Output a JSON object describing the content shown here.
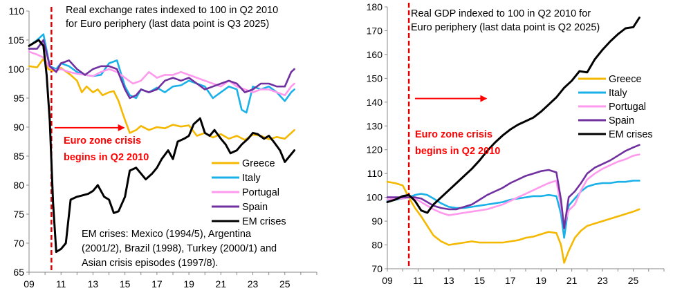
{
  "colors": {
    "Greece": "#f5b800",
    "Italy": "#1ab0e8",
    "Portugal": "#ff99ee",
    "Spain": "#7030a0",
    "EM crises": "#000000",
    "crisis_line": "#e00000",
    "crisis_text": "#ff0000"
  },
  "chart_data": [
    {
      "type": "line",
      "title_lines": [
        "Real exchange rates indexed to 100 in Q2 2010",
        "for Euro periphery (last data point is Q3 2025)"
      ],
      "xlabel": "",
      "ylabel": "",
      "xlim": [
        2009,
        2027
      ],
      "ylim": [
        65,
        110
      ],
      "yticks": [
        65,
        70,
        75,
        80,
        85,
        90,
        95,
        100,
        105,
        110
      ],
      "xticks": [
        2009,
        2011,
        2013,
        2015,
        2017,
        2019,
        2021,
        2023,
        2025
      ],
      "xtick_labels": [
        "09",
        "11",
        "13",
        "15",
        "17",
        "19",
        "21",
        "23",
        "25"
      ],
      "crisis_x": 2010.4,
      "annotation_lines": [
        "Euro zone crisis",
        "begins in Q2 2010"
      ],
      "note_lines": [
        "EM crises: Mexico (1994/5), Argentina",
        "(2001/2), Brazil (1998), Turkey (2000/1) and",
        "Asian crisis episodes (1997/8)."
      ],
      "legend_position": "center-right",
      "series": [
        {
          "name": "Greece",
          "x": [
            2009.0,
            2009.5,
            2009.9,
            2010.2,
            2010.5,
            2010.8,
            2011.0,
            2011.3,
            2011.6,
            2012.0,
            2012.3,
            2012.6,
            2013.0,
            2013.3,
            2013.6,
            2014.0,
            2014.3,
            2014.6,
            2014.9,
            2015.1,
            2015.3,
            2015.7,
            2016.0,
            2016.5,
            2017.0,
            2017.5,
            2018.0,
            2018.5,
            2019.0,
            2019.5,
            2020.0,
            2020.5,
            2021.0,
            2021.5,
            2022.0,
            2022.5,
            2023.0,
            2023.5,
            2024.0,
            2024.5,
            2025.0,
            2025.4,
            2025.6
          ],
          "y": [
            100.5,
            100.3,
            101.8,
            100.0,
            99.7,
            99.8,
            100.2,
            99.6,
            99.0,
            98.0,
            96.0,
            97.0,
            96.0,
            96.5,
            95.5,
            96.0,
            96.2,
            94.5,
            92.0,
            90.5,
            89.0,
            89.5,
            90.2,
            89.5,
            90.0,
            89.8,
            90.4,
            90.1,
            90.3,
            88.5,
            89.0,
            88.2,
            88.8,
            88.0,
            88.5,
            87.8,
            88.7,
            88.5,
            87.9,
            88.3,
            88.0,
            89.0,
            89.5
          ]
        },
        {
          "name": "Italy",
          "x": [
            2009.0,
            2009.5,
            2009.9,
            2010.3,
            2010.7,
            2011.0,
            2011.5,
            2012.0,
            2012.5,
            2013.0,
            2013.5,
            2014.0,
            2014.5,
            2015.0,
            2015.3,
            2015.7,
            2016.0,
            2016.5,
            2017.0,
            2017.5,
            2018.0,
            2018.5,
            2019.0,
            2019.5,
            2020.0,
            2020.5,
            2021.0,
            2021.5,
            2022.0,
            2022.3,
            2022.6,
            2023.0,
            2023.5,
            2024.0,
            2024.5,
            2025.0,
            2025.4,
            2025.6
          ],
          "y": [
            104.0,
            105.0,
            106.0,
            100.5,
            100.0,
            101.0,
            100.5,
            99.5,
            99.0,
            98.8,
            99.0,
            101.0,
            101.5,
            97.0,
            95.5,
            95.0,
            96.5,
            96.0,
            96.8,
            96.0,
            97.0,
            97.2,
            98.0,
            97.5,
            97.0,
            95.0,
            96.0,
            97.0,
            96.5,
            93.0,
            92.5,
            97.0,
            96.5,
            97.0,
            96.0,
            94.5,
            96.0,
            96.5
          ]
        },
        {
          "name": "Portugal",
          "x": [
            2009.0,
            2009.5,
            2009.9,
            2010.3,
            2010.7,
            2011.0,
            2011.5,
            2012.0,
            2012.5,
            2013.0,
            2013.5,
            2014.0,
            2014.5,
            2015.0,
            2015.5,
            2016.0,
            2016.5,
            2017.0,
            2017.5,
            2018.0,
            2018.5,
            2019.0,
            2019.5,
            2020.0,
            2020.5,
            2021.0,
            2021.5,
            2022.0,
            2022.5,
            2023.0,
            2023.5,
            2024.0,
            2024.5,
            2025.0,
            2025.4,
            2025.6
          ],
          "y": [
            103.0,
            102.5,
            102.0,
            100.2,
            99.8,
            100.0,
            99.5,
            99.2,
            99.0,
            98.8,
            99.5,
            100.0,
            99.5,
            98.5,
            97.5,
            98.0,
            99.5,
            98.5,
            99.0,
            99.0,
            99.5,
            99.0,
            98.5,
            98.0,
            97.5,
            97.0,
            98.0,
            97.0,
            96.5,
            96.0,
            96.5,
            96.5,
            96.0,
            95.5,
            97.0,
            97.5
          ]
        },
        {
          "name": "Spain",
          "x": [
            2009.0,
            2009.5,
            2009.9,
            2010.3,
            2010.7,
            2011.0,
            2011.5,
            2012.0,
            2012.5,
            2013.0,
            2013.5,
            2014.0,
            2014.5,
            2015.0,
            2015.3,
            2015.7,
            2016.0,
            2016.5,
            2017.0,
            2017.5,
            2018.0,
            2018.5,
            2019.0,
            2019.5,
            2020.0,
            2020.5,
            2021.0,
            2021.5,
            2022.0,
            2022.5,
            2023.0,
            2023.5,
            2024.0,
            2024.5,
            2025.0,
            2025.4,
            2025.6
          ],
          "y": [
            103.5,
            103.5,
            105.0,
            100.5,
            99.5,
            101.0,
            101.5,
            100.0,
            99.0,
            100.0,
            100.5,
            100.5,
            100.0,
            96.5,
            95.0,
            95.5,
            96.5,
            96.0,
            96.5,
            98.0,
            98.5,
            98.0,
            98.5,
            97.5,
            96.5,
            97.0,
            97.5,
            98.0,
            97.5,
            96.0,
            96.5,
            97.5,
            97.5,
            97.0,
            97.0,
            99.5,
            100.0
          ]
        },
        {
          "name": "EM crises",
          "x": [
            2009.0,
            2009.3,
            2009.6,
            2009.9,
            2010.1,
            2010.3,
            2010.5,
            2010.7,
            2011.0,
            2011.3,
            2011.6,
            2012.0,
            2012.3,
            2012.7,
            2013.0,
            2013.3,
            2013.7,
            2014.0,
            2014.3,
            2014.6,
            2015.0,
            2015.3,
            2015.7,
            2016.0,
            2016.3,
            2016.7,
            2017.0,
            2017.3,
            2017.7,
            2018.0,
            2018.3,
            2018.7,
            2019.0,
            2019.3,
            2019.7,
            2020.0,
            2020.3,
            2020.6,
            2021.0,
            2021.3,
            2021.6,
            2022.0,
            2022.3,
            2022.7,
            2023.0,
            2023.3,
            2023.7,
            2024.0,
            2024.3,
            2024.7,
            2025.0,
            2025.3,
            2025.6
          ],
          "y": [
            104.0,
            104.5,
            105.0,
            104.0,
            99.0,
            91.0,
            77.0,
            68.5,
            69.0,
            70.0,
            77.5,
            78.0,
            78.2,
            78.5,
            79.0,
            80.0,
            78.0,
            77.5,
            75.2,
            75.5,
            78.0,
            82.5,
            83.0,
            82.0,
            81.0,
            82.0,
            83.0,
            84.5,
            86.0,
            84.5,
            87.5,
            88.0,
            88.5,
            90.5,
            91.5,
            89.0,
            88.5,
            89.5,
            88.0,
            87.0,
            85.5,
            86.0,
            87.0,
            88.0,
            89.0,
            88.8,
            88.0,
            88.5,
            87.5,
            86.0,
            84.0,
            85.0,
            86.0
          ]
        }
      ]
    },
    {
      "type": "line",
      "title_lines": [
        "Real GDP indexed to 100 in Q2 2010 for",
        "Euro periphery (last data point is Q2 2025)"
      ],
      "xlabel": "",
      "ylabel": "",
      "xlim": [
        2009,
        2027
      ],
      "ylim": [
        70,
        180
      ],
      "yticks": [
        70,
        80,
        90,
        100,
        110,
        120,
        130,
        140,
        150,
        160,
        170,
        180
      ],
      "xticks": [
        2009,
        2011,
        2013,
        2015,
        2017,
        2019,
        2021,
        2023,
        2025
      ],
      "xtick_labels": [
        "09",
        "11",
        "13",
        "15",
        "17",
        "19",
        "21",
        "23",
        "25"
      ],
      "crisis_x": 2010.4,
      "annotation_lines": [
        "Euro zone crisis",
        "begins in Q2 2010"
      ],
      "legend_position": "center-right",
      "series": [
        {
          "name": "Greece",
          "x": [
            2009.0,
            2009.5,
            2010.0,
            2010.4,
            2010.8,
            2011.2,
            2011.6,
            2012.0,
            2012.5,
            2013.0,
            2013.5,
            2014.0,
            2014.5,
            2015.0,
            2015.5,
            2016.0,
            2016.5,
            2017.0,
            2017.5,
            2018.0,
            2018.5,
            2019.0,
            2019.5,
            2020.0,
            2020.3,
            2020.5,
            2020.8,
            2021.2,
            2021.6,
            2022.0,
            2022.5,
            2023.0,
            2023.5,
            2024.0,
            2024.5,
            2025.0,
            2025.4
          ],
          "y": [
            106.5,
            106.0,
            105.0,
            100.0,
            95.5,
            92.0,
            88.0,
            84.0,
            81.5,
            80.0,
            80.5,
            81.0,
            81.5,
            81.0,
            81.0,
            81.0,
            81.0,
            81.5,
            82.0,
            83.0,
            83.5,
            84.5,
            85.5,
            85.0,
            80.0,
            72.5,
            77.5,
            83.0,
            86.0,
            88.0,
            89.0,
            90.0,
            91.0,
            92.0,
            93.0,
            94.0,
            95.0
          ]
        },
        {
          "name": "Italy",
          "x": [
            2009.0,
            2009.5,
            2010.0,
            2010.4,
            2010.8,
            2011.2,
            2011.6,
            2012.0,
            2012.5,
            2013.0,
            2013.5,
            2014.0,
            2014.5,
            2015.0,
            2015.5,
            2016.0,
            2016.5,
            2017.0,
            2017.5,
            2018.0,
            2018.5,
            2019.0,
            2019.5,
            2020.0,
            2020.3,
            2020.5,
            2020.8,
            2021.2,
            2021.6,
            2022.0,
            2022.5,
            2023.0,
            2023.5,
            2024.0,
            2024.5,
            2025.0,
            2025.4
          ],
          "y": [
            98.5,
            99.0,
            99.5,
            100.0,
            101.0,
            101.5,
            101.0,
            99.5,
            97.5,
            96.0,
            95.5,
            95.5,
            96.0,
            96.5,
            97.0,
            97.5,
            98.0,
            99.0,
            99.5,
            100.0,
            100.5,
            100.5,
            101.0,
            100.5,
            93.0,
            83.0,
            96.5,
            99.5,
            102.5,
            104.5,
            105.5,
            106.0,
            106.0,
            106.5,
            106.5,
            107.0,
            107.0
          ]
        },
        {
          "name": "Portugal",
          "x": [
            2009.0,
            2009.5,
            2010.0,
            2010.4,
            2010.8,
            2011.2,
            2011.6,
            2012.0,
            2012.5,
            2013.0,
            2013.5,
            2014.0,
            2014.5,
            2015.0,
            2015.5,
            2016.0,
            2016.5,
            2017.0,
            2017.5,
            2018.0,
            2018.5,
            2019.0,
            2019.5,
            2020.0,
            2020.3,
            2020.5,
            2020.8,
            2021.2,
            2021.6,
            2022.0,
            2022.5,
            2023.0,
            2023.5,
            2024.0,
            2024.5,
            2025.0,
            2025.4
          ],
          "y": [
            99.0,
            99.5,
            99.5,
            100.0,
            99.5,
            98.0,
            96.5,
            95.0,
            93.5,
            92.5,
            93.0,
            93.5,
            94.0,
            94.5,
            95.0,
            96.0,
            97.0,
            98.5,
            100.0,
            101.5,
            103.0,
            104.5,
            106.0,
            107.0,
            96.0,
            88.0,
            94.5,
            97.0,
            103.0,
            107.5,
            110.0,
            112.0,
            113.5,
            115.0,
            116.0,
            117.5,
            118.0
          ]
        },
        {
          "name": "Spain",
          "x": [
            2009.0,
            2009.5,
            2010.0,
            2010.4,
            2010.8,
            2011.2,
            2011.6,
            2012.0,
            2012.5,
            2013.0,
            2013.5,
            2014.0,
            2014.5,
            2015.0,
            2015.5,
            2016.0,
            2016.5,
            2017.0,
            2017.5,
            2018.0,
            2018.5,
            2019.0,
            2019.5,
            2020.0,
            2020.3,
            2020.5,
            2020.8,
            2021.2,
            2021.6,
            2022.0,
            2022.5,
            2023.0,
            2023.5,
            2024.0,
            2024.5,
            2025.0,
            2025.4
          ],
          "y": [
            100.0,
            100.0,
            100.0,
            100.0,
            100.0,
            99.5,
            98.0,
            96.5,
            95.5,
            95.0,
            95.0,
            96.0,
            97.0,
            99.0,
            101.0,
            102.5,
            104.0,
            106.0,
            107.5,
            109.0,
            110.0,
            111.0,
            111.5,
            110.5,
            99.0,
            87.0,
            100.0,
            102.5,
            106.0,
            110.0,
            112.5,
            114.0,
            115.5,
            117.5,
            119.5,
            121.0,
            122.0
          ]
        },
        {
          "name": "EM crises",
          "x": [
            2009.0,
            2009.5,
            2010.0,
            2010.4,
            2010.8,
            2011.2,
            2011.6,
            2012.0,
            2012.5,
            2013.0,
            2013.5,
            2014.0,
            2014.5,
            2015.0,
            2015.5,
            2016.0,
            2016.5,
            2017.0,
            2017.5,
            2018.0,
            2018.5,
            2019.0,
            2019.5,
            2020.0,
            2020.5,
            2021.0,
            2021.5,
            2022.0,
            2022.5,
            2023.0,
            2023.5,
            2024.0,
            2024.5,
            2025.0,
            2025.4
          ],
          "y": [
            98.0,
            99.0,
            100.5,
            101.0,
            98.5,
            94.5,
            93.5,
            97.0,
            100.0,
            103.0,
            106.0,
            109.0,
            112.0,
            115.5,
            119.5,
            123.0,
            126.0,
            128.5,
            130.5,
            132.0,
            133.5,
            136.0,
            139.0,
            142.0,
            146.0,
            149.0,
            153.0,
            152.5,
            158.0,
            162.0,
            165.5,
            168.5,
            171.0,
            171.5,
            175.5
          ]
        }
      ]
    }
  ]
}
